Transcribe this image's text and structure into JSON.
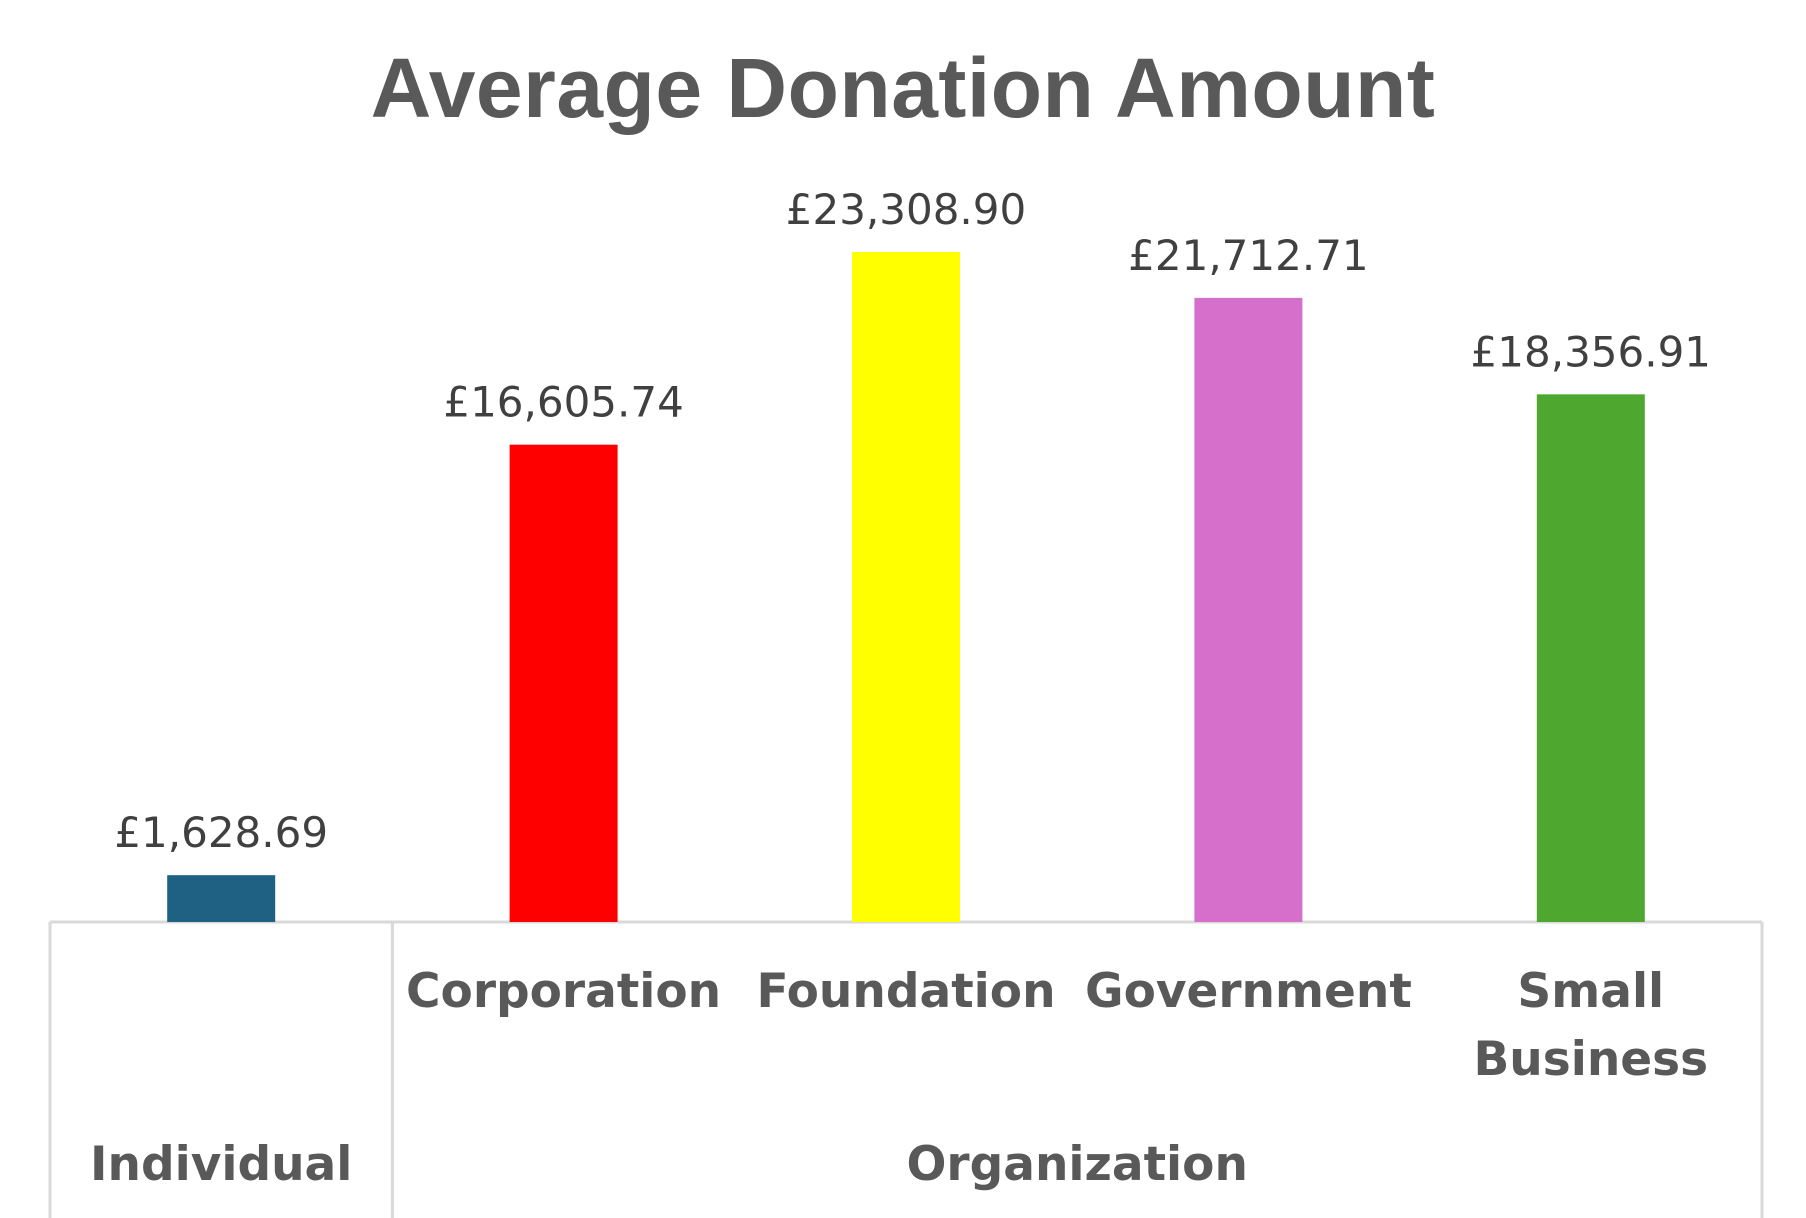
{
  "chart_data": {
    "type": "bar",
    "title": "Average Donation Amount",
    "categories": [
      {
        "label": [
          "Individual"
        ],
        "group": "Individual",
        "value": 1628.69,
        "value_label": "£1,628.69",
        "color": "#1F6183"
      },
      {
        "label": [
          "Corporation"
        ],
        "group": "Organization",
        "value": 16605.74,
        "value_label": "£16,605.74",
        "color": "#FF0000"
      },
      {
        "label": [
          "Foundation"
        ],
        "group": "Organization",
        "value": 23308.9,
        "value_label": "£23,308.90",
        "color": "#FFFF00"
      },
      {
        "label": [
          "Government"
        ],
        "group": "Organization",
        "value": 21712.71,
        "value_label": "£21,712.71",
        "color": "#D66FCB"
      },
      {
        "label": [
          "Small",
          "Business"
        ],
        "group": "Organization",
        "value": 18356.91,
        "value_label": "£18,356.91",
        "color": "#4EA72E"
      }
    ],
    "groups": [
      "Individual",
      "Organization"
    ],
    "ylim": [
      0,
      24000
    ],
    "grid": false,
    "legend": "none"
  }
}
